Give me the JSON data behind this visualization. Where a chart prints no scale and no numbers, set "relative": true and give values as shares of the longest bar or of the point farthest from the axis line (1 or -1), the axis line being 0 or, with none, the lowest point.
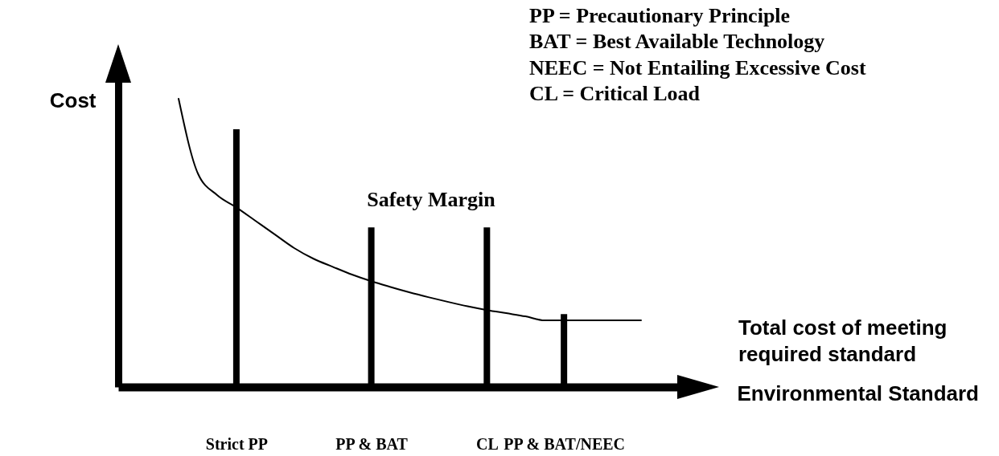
{
  "chart_data": {
    "type": "bar",
    "relative": true,
    "xlabel": "Environmental Standard",
    "ylabel": "Cost",
    "categories": [
      null,
      null,
      null,
      "Strict PP",
      null,
      null,
      null,
      null,
      null,
      null,
      "PP & BAT",
      null,
      null,
      null,
      null,
      null,
      "CL",
      null,
      null,
      null,
      "PP & BAT/NEEC",
      null,
      null,
      null,
      null
    ],
    "series": [
      {
        "color": "#000000",
        "values": [
          null,
          null,
          null,
          0.894,
          null,
          null,
          null,
          null,
          null,
          null,
          0.554,
          null,
          null,
          null,
          null,
          null,
          0.554,
          null,
          null,
          null,
          0.253,
          null,
          null,
          null,
          null
        ]
      },
      {
        "type": "line",
        "name": "Total cost of meeting required standard",
        "color": "#000000",
        "values": [
          1.0,
          0.741,
          0.666,
          0.623,
          0.576,
          0.529,
          0.482,
          0.445,
          0.417,
          0.39,
          0.367,
          0.347,
          0.328,
          0.311,
          0.295,
          0.28,
          0.267,
          0.256,
          0.245,
          0.231,
          0.231,
          0.231,
          0.231,
          0.231,
          0.231
        ]
      }
    ],
    "annotations": [
      "PP = Precautionary Principle",
      "BAT = Best Available Technology",
      "NEEC = Not Entailing Excessive Cost",
      "CL = Critical Load",
      "Safety Margin"
    ]
  }
}
